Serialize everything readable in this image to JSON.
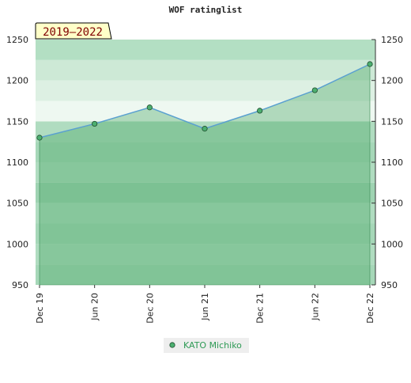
{
  "chart_data": {
    "type": "line",
    "title": "WOF ratinglist",
    "annotation": "2019–2022",
    "categories": [
      "Dec 19",
      "Jun 20",
      "Dec 20",
      "Jun 21",
      "Dec 21",
      "Jun 22",
      "Dec 22"
    ],
    "series": [
      {
        "name": "KATO Michiko",
        "color": "#4caf70",
        "values": [
          1130,
          1147,
          1167,
          1141,
          1163,
          1188,
          1220
        ]
      }
    ],
    "ylim": [
      950,
      1250
    ],
    "yticks": [
      950,
      1000,
      1050,
      1100,
      1150,
      1200,
      1250
    ]
  }
}
